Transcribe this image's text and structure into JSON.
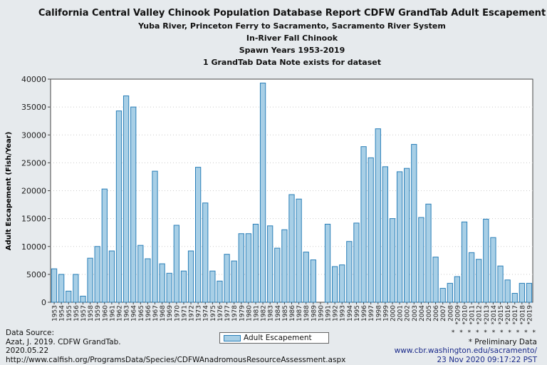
{
  "header": {
    "title": "California Central Valley Chinook Population Database Report CDFW GrandTab Adult Escapement",
    "subtitle1": "Yuba River, Princeton Ferry to Sacramento, Sacramento River System",
    "subtitle2": "In-River Fall Chinook",
    "subtitle3": "Spawn Years 1953-2019",
    "subtitle4": "1 GrandTab Data Note exists for dataset"
  },
  "footer": {
    "source_line1": "Data Source:",
    "source_line2": "Azat, J. 2019. CDFW GrandTab.",
    "source_line3": "2020.05.22",
    "source_line4": "http://www.calfish.org/ProgramsData/Species/CDFWAnadromousResourceAssessment.aspx",
    "stars": "* * * * * * * * * * *",
    "prelim": "* Preliminary Data",
    "url": "www.cbr.washington.edu/sacramento/",
    "timestamp": "23 Nov 2020 09:17:22 PST"
  },
  "chart_data": {
    "type": "bar",
    "title": "California Central Valley Chinook Population Database Report CDFW GrandTab Adult Escapement",
    "ylabel": "Adult Escapement (Fish/Year)",
    "xlabel": "",
    "ylim": [
      0,
      40000
    ],
    "yticks": [
      0,
      5000,
      10000,
      15000,
      20000,
      25000,
      30000,
      35000,
      40000
    ],
    "grid": "horizontal dotted",
    "legend": "bottom-center",
    "bar_color": "#a8cfe6",
    "bar_edge": "#2a7fb8",
    "categories": [
      "1953",
      "1954",
      "1955",
      "1956",
      "1957",
      "1958",
      "1959",
      "1960",
      "1961",
      "1962",
      "1963",
      "1964",
      "1965",
      "1966",
      "1967",
      "1968",
      "1969",
      "1970",
      "1971",
      "1972",
      "1973",
      "1974",
      "1975",
      "1976",
      "1977",
      "1978",
      "1979",
      "1980",
      "1981",
      "1982",
      "1983",
      "1984",
      "1985",
      "1986",
      "1987",
      "1988",
      "1989",
      "1990",
      "1991",
      "1992",
      "1993",
      "1994",
      "1995",
      "1996",
      "1997",
      "1998",
      "1999",
      "2000",
      "2001",
      "2002",
      "2003",
      "2004",
      "2005",
      "2006",
      "2007",
      "2008",
      "*2009",
      "*2010",
      "*2011",
      "*2012",
      "*2013",
      "*2014",
      "*2015",
      "*2016",
      "*2017",
      "*2018",
      "*2019"
    ],
    "series": [
      {
        "name": "Adult Escapement",
        "values": [
          6000,
          5000,
          2000,
          5000,
          1100,
          7900,
          10000,
          20300,
          9200,
          34300,
          37000,
          35000,
          10200,
          7800,
          23500,
          6900,
          5200,
          13800,
          5600,
          9200,
          24200,
          17800,
          5600,
          3800,
          8600,
          7400,
          12300,
          12300,
          14000,
          39300,
          13700,
          9700,
          13000,
          19300,
          18500,
          9000,
          7600,
          0,
          14000,
          6400,
          6700,
          10900,
          14200,
          27900,
          25900,
          31100,
          24300,
          15000,
          23400,
          24000,
          28300,
          15200,
          17600,
          8100,
          2500,
          3400,
          4600,
          14400,
          8900,
          7700,
          14900,
          11600,
          6500,
          4000,
          1600,
          3400,
          3400
        ]
      }
    ]
  }
}
